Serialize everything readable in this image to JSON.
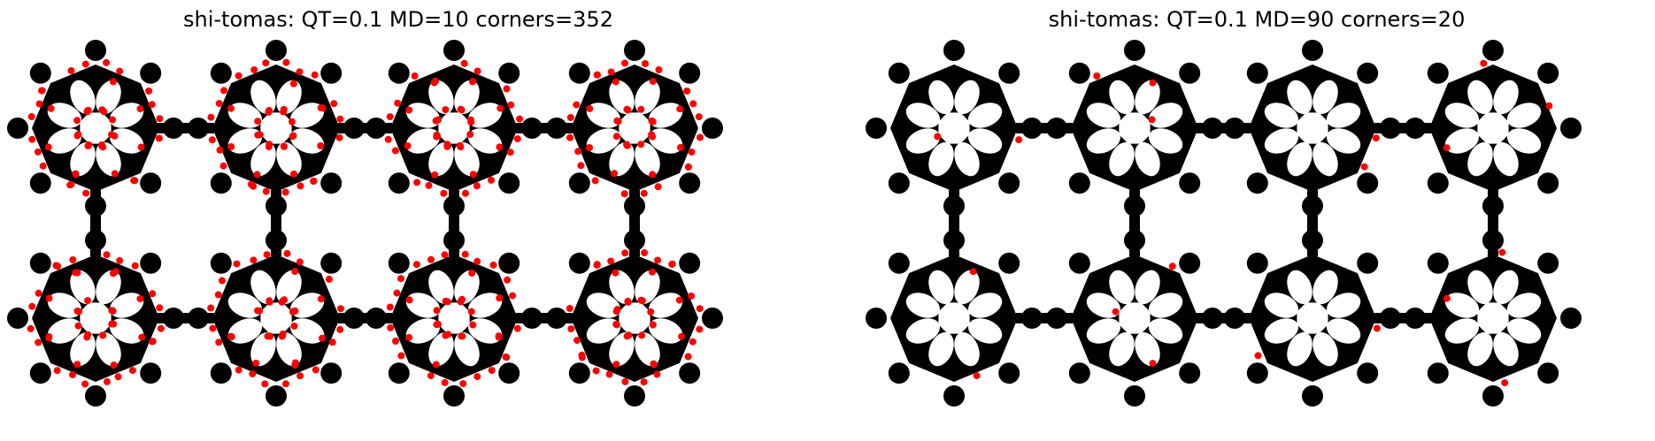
{
  "panels": [
    {
      "title": "shi-tomas: QT=0.1 MD=10 corners=352",
      "corner_count": 352,
      "quality": 0.1,
      "min_distance": 10
    },
    {
      "title": "shi-tomas: QT=0.1 MD=90 corners=20",
      "corner_count": 20,
      "quality": 0.1,
      "min_distance": 90
    }
  ],
  "colors": {
    "background": "#ffffff",
    "shape": "#000000",
    "holes": "#ffffff",
    "corner_marker": "#ff0000"
  },
  "grid": {
    "rows": 2,
    "cols": 4
  }
}
